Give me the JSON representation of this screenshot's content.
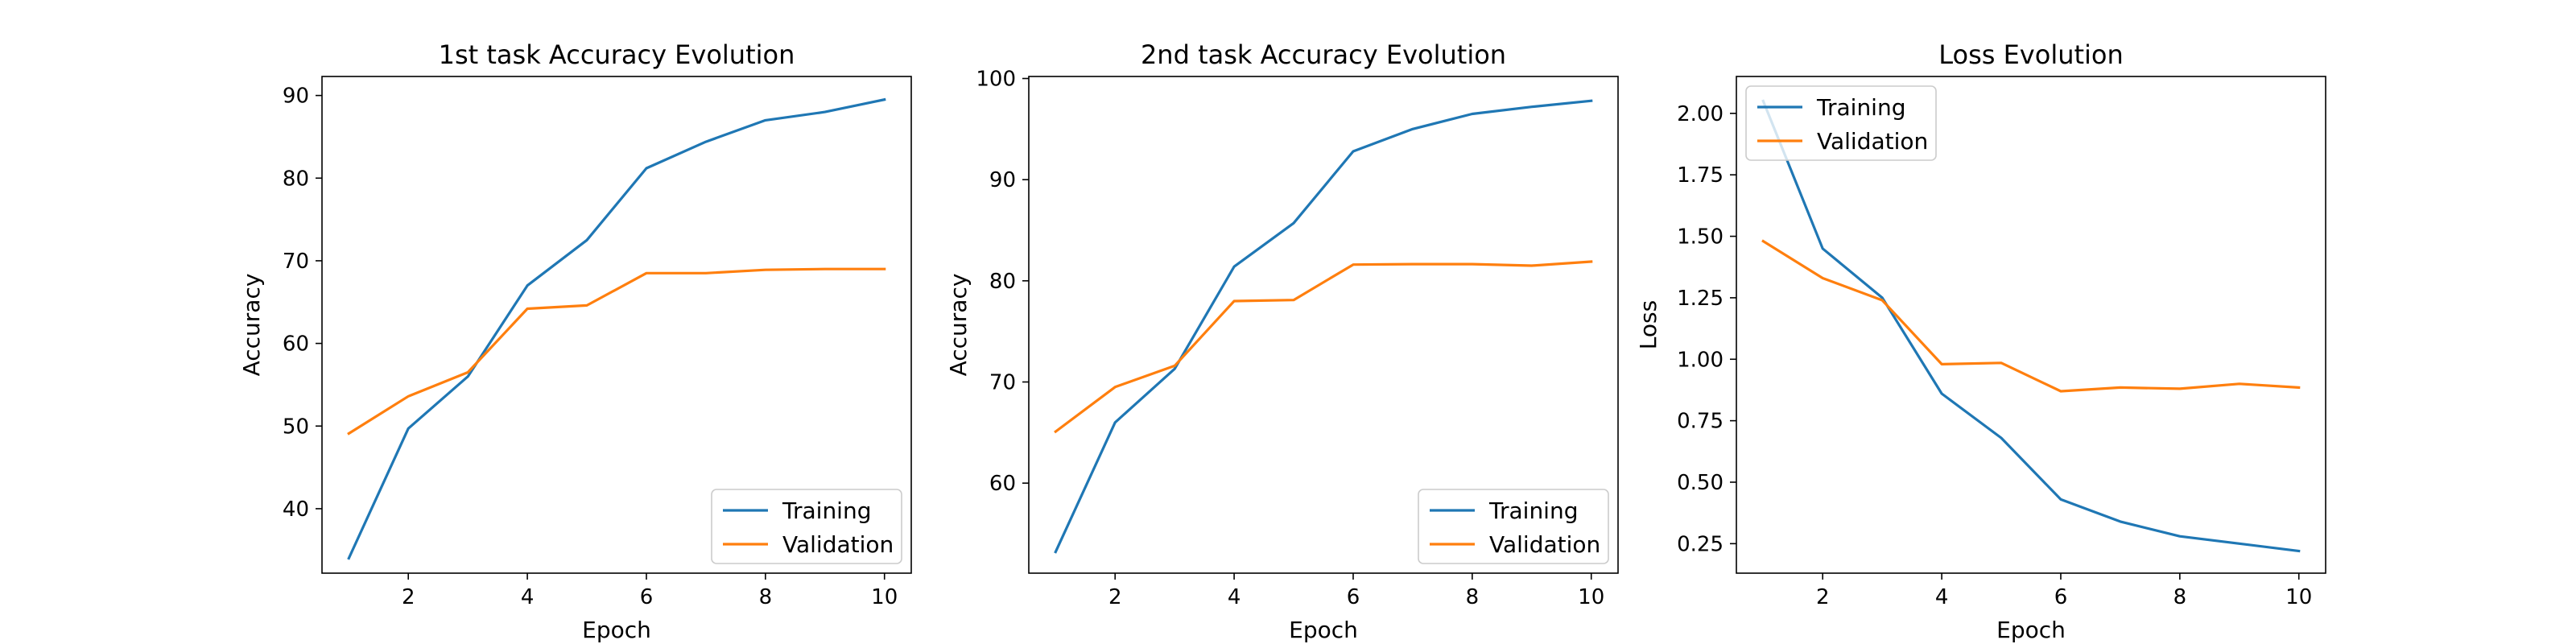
{
  "chart_data": [
    {
      "type": "line",
      "title": "1st task Accuracy Evolution",
      "xlabel": "Epoch",
      "ylabel": "Accuracy",
      "xlim": [
        0.55,
        10.45
      ],
      "ylim": [
        32.2,
        92.3
      ],
      "xticks": [
        2,
        4,
        6,
        8,
        10
      ],
      "yticks": [
        40,
        50,
        60,
        70,
        80,
        90
      ],
      "legend_position": "lower right",
      "grid": false,
      "x": [
        1,
        2,
        3,
        4,
        5,
        6,
        7,
        8,
        9,
        10
      ],
      "series": [
        {
          "name": "Training",
          "color": "#1f77b4",
          "values": [
            34.0,
            49.7,
            56.0,
            67.0,
            72.5,
            81.2,
            84.4,
            87.0,
            88.0,
            89.5
          ]
        },
        {
          "name": "Validation",
          "color": "#ff7f0e",
          "values": [
            49.1,
            53.6,
            56.5,
            64.2,
            64.6,
            68.5,
            68.5,
            68.9,
            69.0,
            69.0
          ]
        }
      ]
    },
    {
      "type": "line",
      "title": "2nd task Accuracy Evolution",
      "xlabel": "Epoch",
      "ylabel": "Accuracy",
      "xlim": [
        0.55,
        10.45
      ],
      "ylim": [
        51.1,
        100.2
      ],
      "xticks": [
        2,
        4,
        6,
        8,
        10
      ],
      "yticks": [
        60,
        70,
        80,
        90,
        100
      ],
      "legend_position": "lower right",
      "grid": false,
      "x": [
        1,
        2,
        3,
        4,
        5,
        6,
        7,
        8,
        9,
        10
      ],
      "series": [
        {
          "name": "Training",
          "color": "#1f77b4",
          "values": [
            53.2,
            66.0,
            71.3,
            81.4,
            85.7,
            92.8,
            95.0,
            96.5,
            97.2,
            97.8
          ]
        },
        {
          "name": "Validation",
          "color": "#ff7f0e",
          "values": [
            65.1,
            69.5,
            71.6,
            78.0,
            78.1,
            81.6,
            81.65,
            81.65,
            81.5,
            81.9
          ]
        }
      ]
    },
    {
      "type": "line",
      "title": "Loss Evolution",
      "xlabel": "Epoch",
      "ylabel": "Loss",
      "xlim": [
        0.55,
        10.45
      ],
      "ylim": [
        0.13,
        2.15
      ],
      "xticks": [
        2,
        4,
        6,
        8,
        10
      ],
      "yticks": [
        0.25,
        0.5,
        0.75,
        1.0,
        1.25,
        1.5,
        1.75,
        2.0
      ],
      "yticklabels": [
        "0.25",
        "0.50",
        "0.75",
        "1.00",
        "1.25",
        "1.50",
        "1.75",
        "2.00"
      ],
      "legend_position": "upper left",
      "grid": false,
      "x": [
        1,
        2,
        3,
        4,
        5,
        6,
        7,
        8,
        9,
        10
      ],
      "series": [
        {
          "name": "Training",
          "color": "#1f77b4",
          "values": [
            2.05,
            1.45,
            1.25,
            0.86,
            0.68,
            0.43,
            0.34,
            0.28,
            0.25,
            0.22
          ]
        },
        {
          "name": "Validation",
          "color": "#ff7f0e",
          "values": [
            1.48,
            1.33,
            1.24,
            0.98,
            0.985,
            0.87,
            0.885,
            0.88,
            0.9,
            0.885
          ]
        }
      ]
    }
  ]
}
